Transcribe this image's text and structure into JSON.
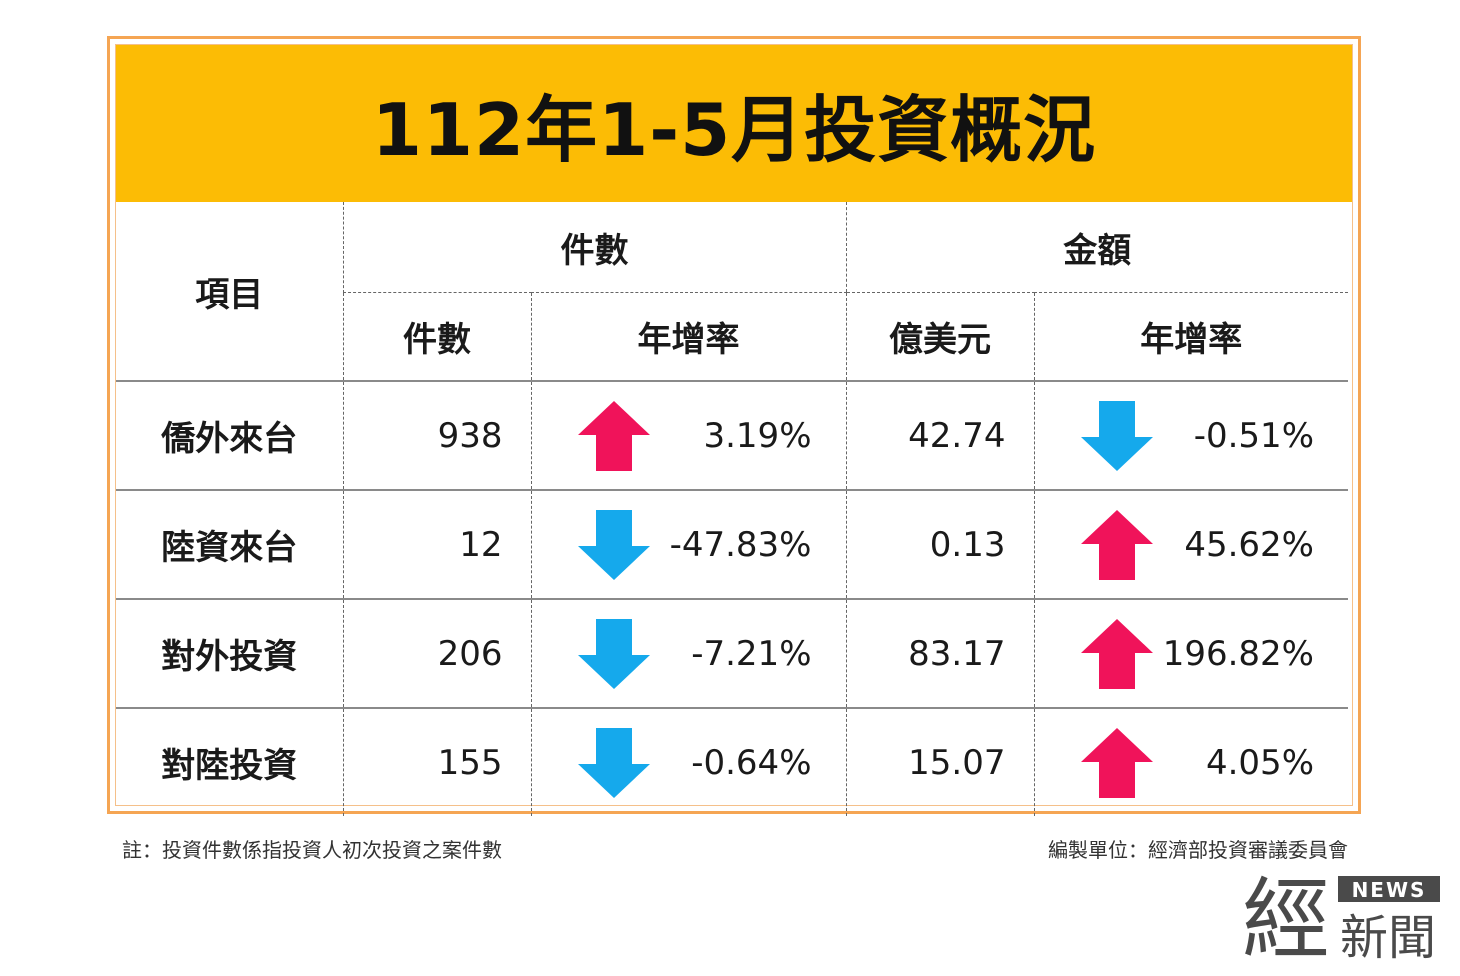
{
  "title": "112年1-5月投資概況",
  "header": {
    "item": "項目",
    "group_count": "件數",
    "group_amount": "金額",
    "sub_count": "件數",
    "sub_count_rate": "年增率",
    "sub_amount": "億美元",
    "sub_amount_rate": "年增率"
  },
  "rows": [
    {
      "label": "僑外來台",
      "count": "938",
      "count_rate": "3.19%",
      "amount": "42.74",
      "amount_rate": "-0.51%"
    },
    {
      "label": "陸資來台",
      "count": "12",
      "count_rate": "-47.83%",
      "amount": "0.13",
      "amount_rate": "45.62%"
    },
    {
      "label": "對外投資",
      "count": "206",
      "count_rate": "-7.21%",
      "amount": "83.17",
      "amount_rate": "196.82%"
    },
    {
      "label": "對陸投資",
      "count": "155",
      "count_rate": "-0.64%",
      "amount": "15.07",
      "amount_rate": "4.05%"
    }
  ],
  "note": "註：投資件數係指投資人初次投資之案件數",
  "source": "編製單位：經濟部投資審議委員會",
  "logo": {
    "main": "經",
    "sub": "新聞",
    "tag": "NEWS"
  },
  "colors": {
    "up": "#f0135a",
    "down": "#15a9ec",
    "title_bg": "#fcbc05",
    "frame": "#f5a553"
  },
  "chart_data": {
    "type": "table",
    "title": "112年1-5月投資概況",
    "columns": [
      "項目",
      "件數",
      "年增率",
      "億美元",
      "年增率"
    ],
    "column_groups": [
      {
        "name": "件數",
        "columns": [
          "件數",
          "年增率"
        ]
      },
      {
        "name": "金額",
        "columns": [
          "億美元",
          "年增率"
        ]
      }
    ],
    "rows": [
      [
        "僑外來台",
        938,
        "3.19%",
        42.74,
        "-0.51%"
      ],
      [
        "陸資來台",
        12,
        "-47.83%",
        0.13,
        "45.62%"
      ],
      [
        "對外投資",
        206,
        "-7.21%",
        83.17,
        "196.82%"
      ],
      [
        "對陸投資",
        155,
        "-0.64%",
        15.07,
        "4.05%"
      ]
    ],
    "trend_arrows": {
      "up": "red-up-arrow-icon",
      "down": "blue-down-arrow-icon"
    }
  }
}
